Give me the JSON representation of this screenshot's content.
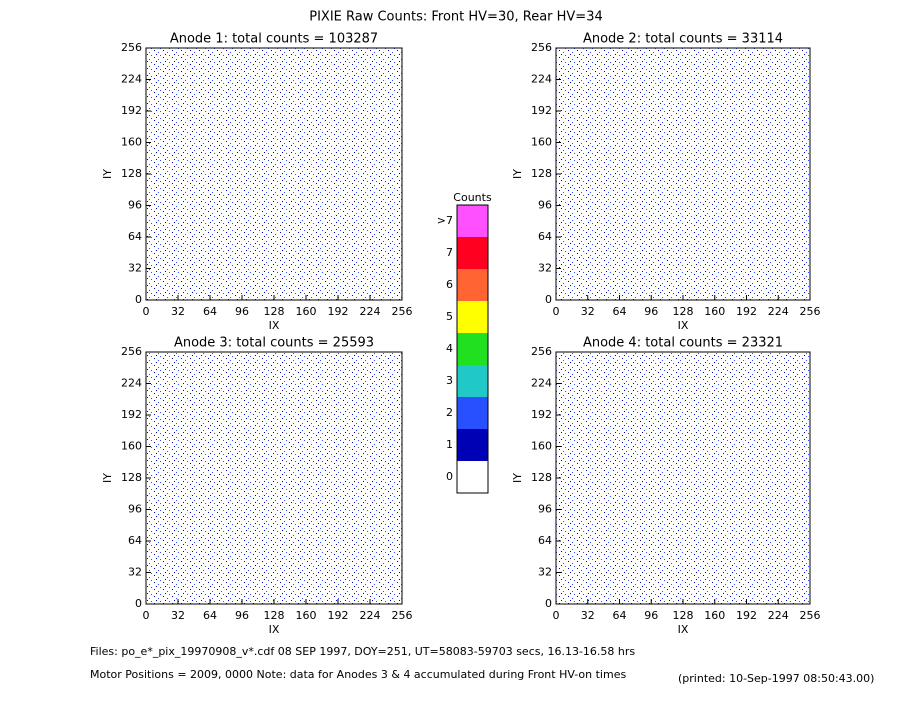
{
  "title": "PIXIE Raw Counts:  Front HV=30, Rear HV=34",
  "chart_data": [
    {
      "type": "heatmap",
      "title": "Anode 1: total counts = 103287",
      "x_label": "IX",
      "y_label": "IY",
      "xlim": [
        0,
        256
      ],
      "ylim": [
        0,
        256
      ],
      "xticks": [
        0,
        32,
        64,
        96,
        128,
        160,
        192,
        224,
        256
      ],
      "yticks": [
        0,
        32,
        64,
        96,
        128,
        160,
        192,
        224,
        256
      ]
    },
    {
      "type": "heatmap",
      "title": "Anode 2: total counts = 33114",
      "x_label": "IX",
      "y_label": "IY",
      "xlim": [
        0,
        256
      ],
      "ylim": [
        0,
        256
      ],
      "xticks": [
        0,
        32,
        64,
        96,
        128,
        160,
        192,
        224,
        256
      ],
      "yticks": [
        0,
        32,
        64,
        96,
        128,
        160,
        192,
        224,
        256
      ]
    },
    {
      "type": "heatmap",
      "title": "Anode 3: total counts = 25593",
      "x_label": "IX",
      "y_label": "IY",
      "xlim": [
        0,
        256
      ],
      "ylim": [
        0,
        256
      ],
      "xticks": [
        0,
        32,
        64,
        96,
        128,
        160,
        192,
        224,
        256
      ],
      "yticks": [
        0,
        32,
        64,
        96,
        128,
        160,
        192,
        224,
        256
      ]
    },
    {
      "type": "heatmap",
      "title": "Anode 4: total counts = 23321",
      "x_label": "IX",
      "y_label": "IY",
      "xlim": [
        0,
        256
      ],
      "ylim": [
        0,
        256
      ],
      "xticks": [
        0,
        32,
        64,
        96,
        128,
        160,
        192,
        224,
        256
      ],
      "yticks": [
        0,
        32,
        64,
        96,
        128,
        160,
        192,
        224,
        256
      ]
    }
  ],
  "colorbar": {
    "title": "Counts",
    "labels": [
      "0",
      "1",
      "2",
      "3",
      "4",
      "5",
      "6",
      "7",
      ">7"
    ],
    "colors": [
      "#ffffff",
      "#0000b4",
      "#2850ff",
      "#20c8c8",
      "#20e020",
      "#ffff00",
      "#ff6432",
      "#ff0020",
      "#ff50ff"
    ]
  },
  "footer": {
    "files": "Files: po_e*_pix_19970908_v*.cdf    08 SEP 1997, DOY=251, UT=58083-59703 secs, 16.13-16.58 hrs",
    "motor": "Motor Positions = 2009, 0000   Note: data for Anodes 3 & 4 accumulated during Front HV-on times",
    "printed": "(printed: 10-Sep-1997 08:50:43.00)"
  }
}
